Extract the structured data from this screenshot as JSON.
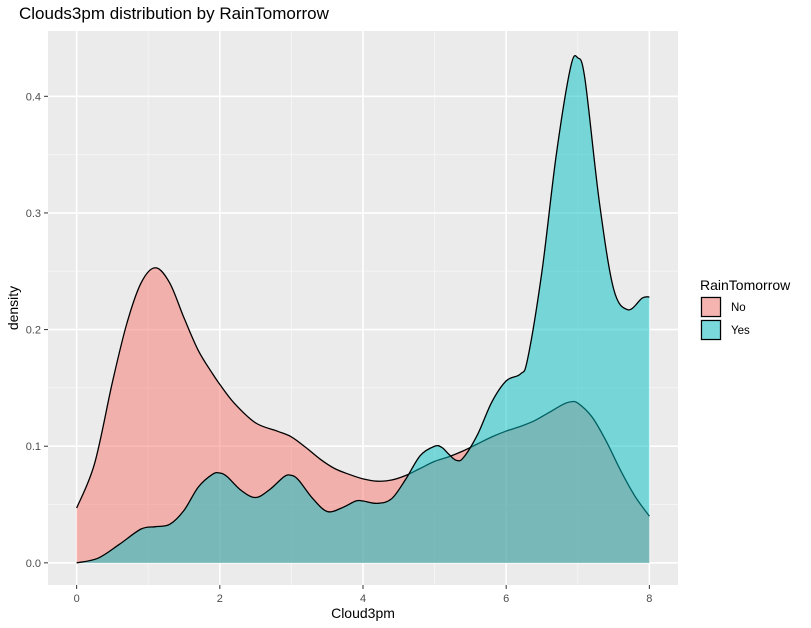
{
  "chart_data": {
    "type": "area",
    "title": "Clouds3pm distribution by RainTomorrow",
    "xlabel": "Cloud3pm",
    "ylabel": "density",
    "xlim": [
      -0.4,
      8.4
    ],
    "ylim": [
      -0.019,
      0.456
    ],
    "x_ticks": [
      0,
      2,
      4,
      6,
      8
    ],
    "x_tick_labels": [
      "0",
      "2",
      "4",
      "6",
      "8"
    ],
    "y_ticks": [
      0.0,
      0.1,
      0.2,
      0.3,
      0.4
    ],
    "y_tick_labels": [
      "0.0",
      "0.1",
      "0.2",
      "0.3",
      "0.4"
    ],
    "grid": true,
    "legend": {
      "title": "RainTomorrow",
      "placement": "right"
    },
    "series": [
      {
        "name": "No",
        "color": "#F8766D",
        "x": [
          0,
          0.25,
          0.5,
          0.7,
          0.9,
          1.1,
          1.3,
          1.5,
          1.7,
          1.9,
          2.0,
          2.2,
          2.5,
          2.8,
          3.0,
          3.2,
          3.4,
          3.6,
          3.8,
          4.0,
          4.2,
          4.4,
          4.6,
          4.8,
          5.0,
          5.2,
          5.4,
          5.6,
          5.8,
          6.0,
          6.2,
          6.4,
          6.6,
          6.8,
          6.9,
          7.0,
          7.2,
          7.4,
          7.6,
          7.8,
          8.0
        ],
        "y": [
          0.047,
          0.085,
          0.155,
          0.205,
          0.24,
          0.253,
          0.24,
          0.21,
          0.182,
          0.162,
          0.153,
          0.137,
          0.12,
          0.113,
          0.108,
          0.099,
          0.089,
          0.081,
          0.076,
          0.072,
          0.07,
          0.071,
          0.075,
          0.081,
          0.087,
          0.091,
          0.096,
          0.102,
          0.108,
          0.113,
          0.117,
          0.122,
          0.129,
          0.136,
          0.138,
          0.137,
          0.125,
          0.104,
          0.079,
          0.057,
          0.04
        ]
      },
      {
        "name": "Yes",
        "color": "#00BFC4",
        "x": [
          0,
          0.3,
          0.6,
          0.9,
          1.1,
          1.3,
          1.5,
          1.7,
          1.9,
          2.0,
          2.1,
          2.3,
          2.5,
          2.7,
          2.9,
          3.0,
          3.1,
          3.3,
          3.5,
          3.7,
          3.9,
          4.0,
          4.2,
          4.4,
          4.6,
          4.8,
          5.0,
          5.1,
          5.2,
          5.3,
          5.4,
          5.6,
          5.8,
          6.0,
          6.2,
          6.3,
          6.5,
          6.7,
          6.9,
          7.0,
          7.1,
          7.3,
          7.5,
          7.7,
          7.9,
          8.0
        ],
        "y": [
          0.0,
          0.004,
          0.016,
          0.029,
          0.031,
          0.033,
          0.045,
          0.065,
          0.076,
          0.077,
          0.074,
          0.062,
          0.056,
          0.063,
          0.074,
          0.075,
          0.071,
          0.055,
          0.044,
          0.047,
          0.053,
          0.053,
          0.051,
          0.055,
          0.072,
          0.092,
          0.1,
          0.099,
          0.093,
          0.088,
          0.09,
          0.11,
          0.138,
          0.156,
          0.162,
          0.175,
          0.25,
          0.35,
          0.425,
          0.433,
          0.415,
          0.31,
          0.235,
          0.217,
          0.227,
          0.228
        ]
      }
    ]
  }
}
